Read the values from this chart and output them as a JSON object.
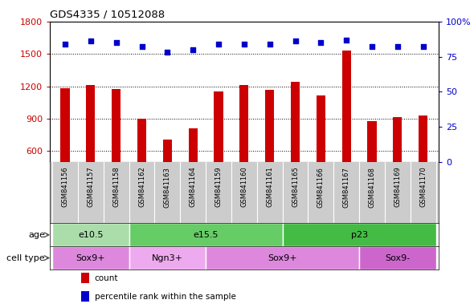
{
  "title": "GDS4335 / 10512088",
  "samples": [
    "GSM841156",
    "GSM841157",
    "GSM841158",
    "GSM841162",
    "GSM841163",
    "GSM841164",
    "GSM841159",
    "GSM841160",
    "GSM841161",
    "GSM841165",
    "GSM841166",
    "GSM841167",
    "GSM841168",
    "GSM841169",
    "GSM841170"
  ],
  "counts": [
    1185,
    1210,
    1175,
    900,
    705,
    810,
    1155,
    1210,
    1165,
    1240,
    1115,
    1530,
    880,
    910,
    925
  ],
  "percentile_ranks": [
    84,
    86,
    85,
    82,
    78,
    80,
    84,
    84,
    84,
    86,
    85,
    87,
    82,
    82,
    82
  ],
  "ylim_left": [
    500,
    1800
  ],
  "ylim_right": [
    0,
    100
  ],
  "yticks_left": [
    600,
    900,
    1200,
    1500,
    1800
  ],
  "yticks_right": [
    0,
    25,
    50,
    75,
    100
  ],
  "bar_color": "#cc0000",
  "dot_color": "#0000cc",
  "grid_color": "#555555",
  "tick_bg_color": "#cccccc",
  "age_groups": [
    {
      "label": "e10.5",
      "start": 0,
      "end": 3,
      "color": "#aaddaa"
    },
    {
      "label": "e15.5",
      "start": 3,
      "end": 9,
      "color": "#66cc66"
    },
    {
      "label": "p23",
      "start": 9,
      "end": 15,
      "color": "#44bb44"
    }
  ],
  "cell_type_groups": [
    {
      "label": "Sox9+",
      "start": 0,
      "end": 3,
      "color": "#dd88dd"
    },
    {
      "label": "Ngn3+",
      "start": 3,
      "end": 6,
      "color": "#eeaaee"
    },
    {
      "label": "Sox9+",
      "start": 6,
      "end": 12,
      "color": "#dd88dd"
    },
    {
      "label": "Sox9-",
      "start": 12,
      "end": 15,
      "color": "#cc66cc"
    }
  ],
  "legend_items": [
    {
      "color": "#cc0000",
      "label": "count"
    },
    {
      "color": "#0000cc",
      "label": "percentile rank within the sample"
    }
  ],
  "row_label_age": "age",
  "row_label_cell": "cell type"
}
